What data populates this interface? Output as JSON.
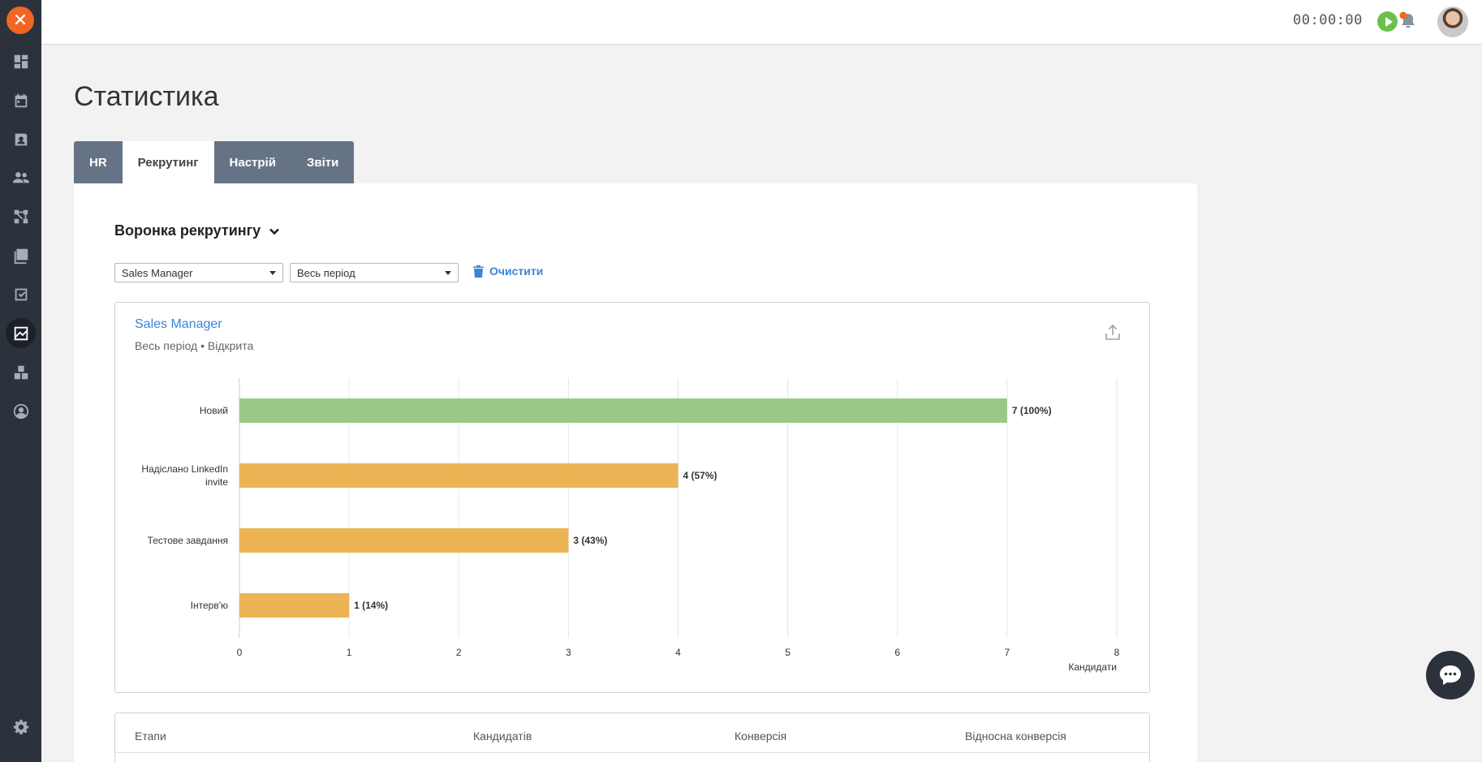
{
  "header": {
    "timer": "00:00:00"
  },
  "sidebar": {
    "items": [
      {
        "name": "dashboard-icon"
      },
      {
        "name": "calendar-icon"
      },
      {
        "name": "contacts-icon"
      },
      {
        "name": "people-icon"
      },
      {
        "name": "workflow-icon"
      },
      {
        "name": "library-icon"
      },
      {
        "name": "tasks-icon"
      },
      {
        "name": "statistics-icon",
        "active": true
      },
      {
        "name": "blocks-icon"
      },
      {
        "name": "profile-icon"
      }
    ],
    "settings_icon": "gear-icon"
  },
  "page": {
    "title": "Статистика"
  },
  "tabs": [
    {
      "label": "HR"
    },
    {
      "label": "Рекрутинг",
      "active": true
    },
    {
      "label": "Настрій"
    },
    {
      "label": "Звіти"
    }
  ],
  "section": {
    "title": "Воронка рекрутингу"
  },
  "filters": {
    "vacancy": "Sales Manager",
    "period": "Весь період",
    "clear_label": "Очистити"
  },
  "chart_card": {
    "title": "Sales Manager",
    "subtitle": "Весь період • Відкрита"
  },
  "chart_data": {
    "type": "bar",
    "orientation": "horizontal",
    "categories": [
      "Новий",
      "Надіслано LinkedIn invite",
      "Тестове завдання",
      "Інтерв'ю"
    ],
    "values": [
      7,
      4,
      3,
      1
    ],
    "data_labels": [
      "7 (100%)",
      "4 (57%)",
      "3 (43%)",
      "1 (14%)"
    ],
    "colors": [
      "#9bc887",
      "#ecb455",
      "#ecb455",
      "#ecb455"
    ],
    "xlabel": "Кандидати",
    "xlim": [
      0,
      8
    ],
    "xticks": [
      "0",
      "1",
      "2",
      "3",
      "4",
      "5",
      "6",
      "7",
      "8"
    ],
    "grid": true
  },
  "table": {
    "headers": [
      "Етапи",
      "Кандидатів",
      "Конверсія",
      "Відносна конверсія"
    ]
  }
}
